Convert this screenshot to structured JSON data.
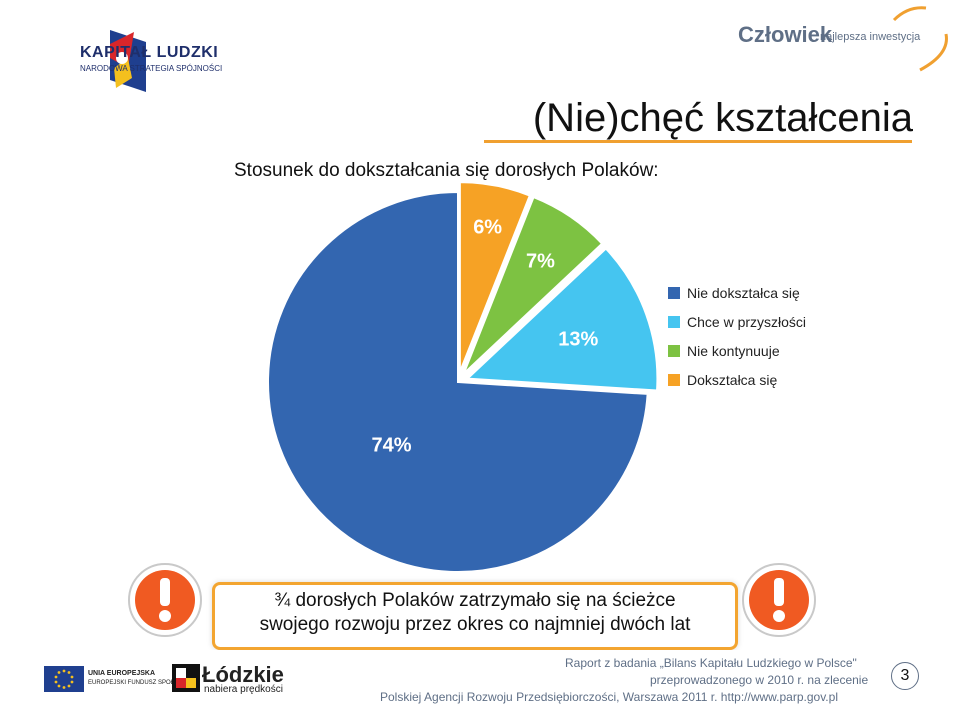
{
  "header": {
    "logo_left_title": "KAPITAŁ LUDZKI",
    "logo_left_subtitle": "NARODOWA STRATEGIA SPÓJNOŚCI",
    "logo_right_title": "Człowiek",
    "logo_right_subtitle": "najlepsza inwestycja",
    "accent_color": "#f0a030"
  },
  "slide": {
    "title": "(Nie)chęć kształcenia",
    "subtitle": "Stosunek do dokształcania się dorosłych Polaków:"
  },
  "chart_data": {
    "type": "pie",
    "categories": [
      "Nie dokształca się",
      "Chce w przyszłości",
      "Nie kontynuuje",
      "Dokształca się"
    ],
    "values": [
      74,
      13,
      7,
      6
    ],
    "labels": [
      "74%",
      "13%",
      "7%",
      "6%"
    ],
    "colors": [
      "#3366b0",
      "#45c5f0",
      "#7dc242",
      "#f6a225"
    ],
    "legend_position": "right"
  },
  "callout": {
    "line1": "¾ dorosłych Polaków zatrzymało się na ścieżce",
    "line2": "swojego rozwoju przez okres co najmniej dwóch lat",
    "icon": "exclamation-icon"
  },
  "footer": {
    "eu_line1": "UNIA EUROPEJSKA",
    "eu_line2": "EUROPEJSKI FUNDUSZ SPOŁECZNY",
    "region_name": "Łódzkie",
    "region_tagline": "nabiera prędkości",
    "source_line1": "Raport z badania „Bilans Kapitału Ludzkiego w Polsce\"",
    "source_line2": "przeprowadzonego w 2010 r. na zlecenie",
    "source_line3": "Polskiej Agencji Rozwoju Przedsiębiorczości, Warszawa 2011 r. http://www.parp.gov.pl",
    "page_number": "3"
  }
}
